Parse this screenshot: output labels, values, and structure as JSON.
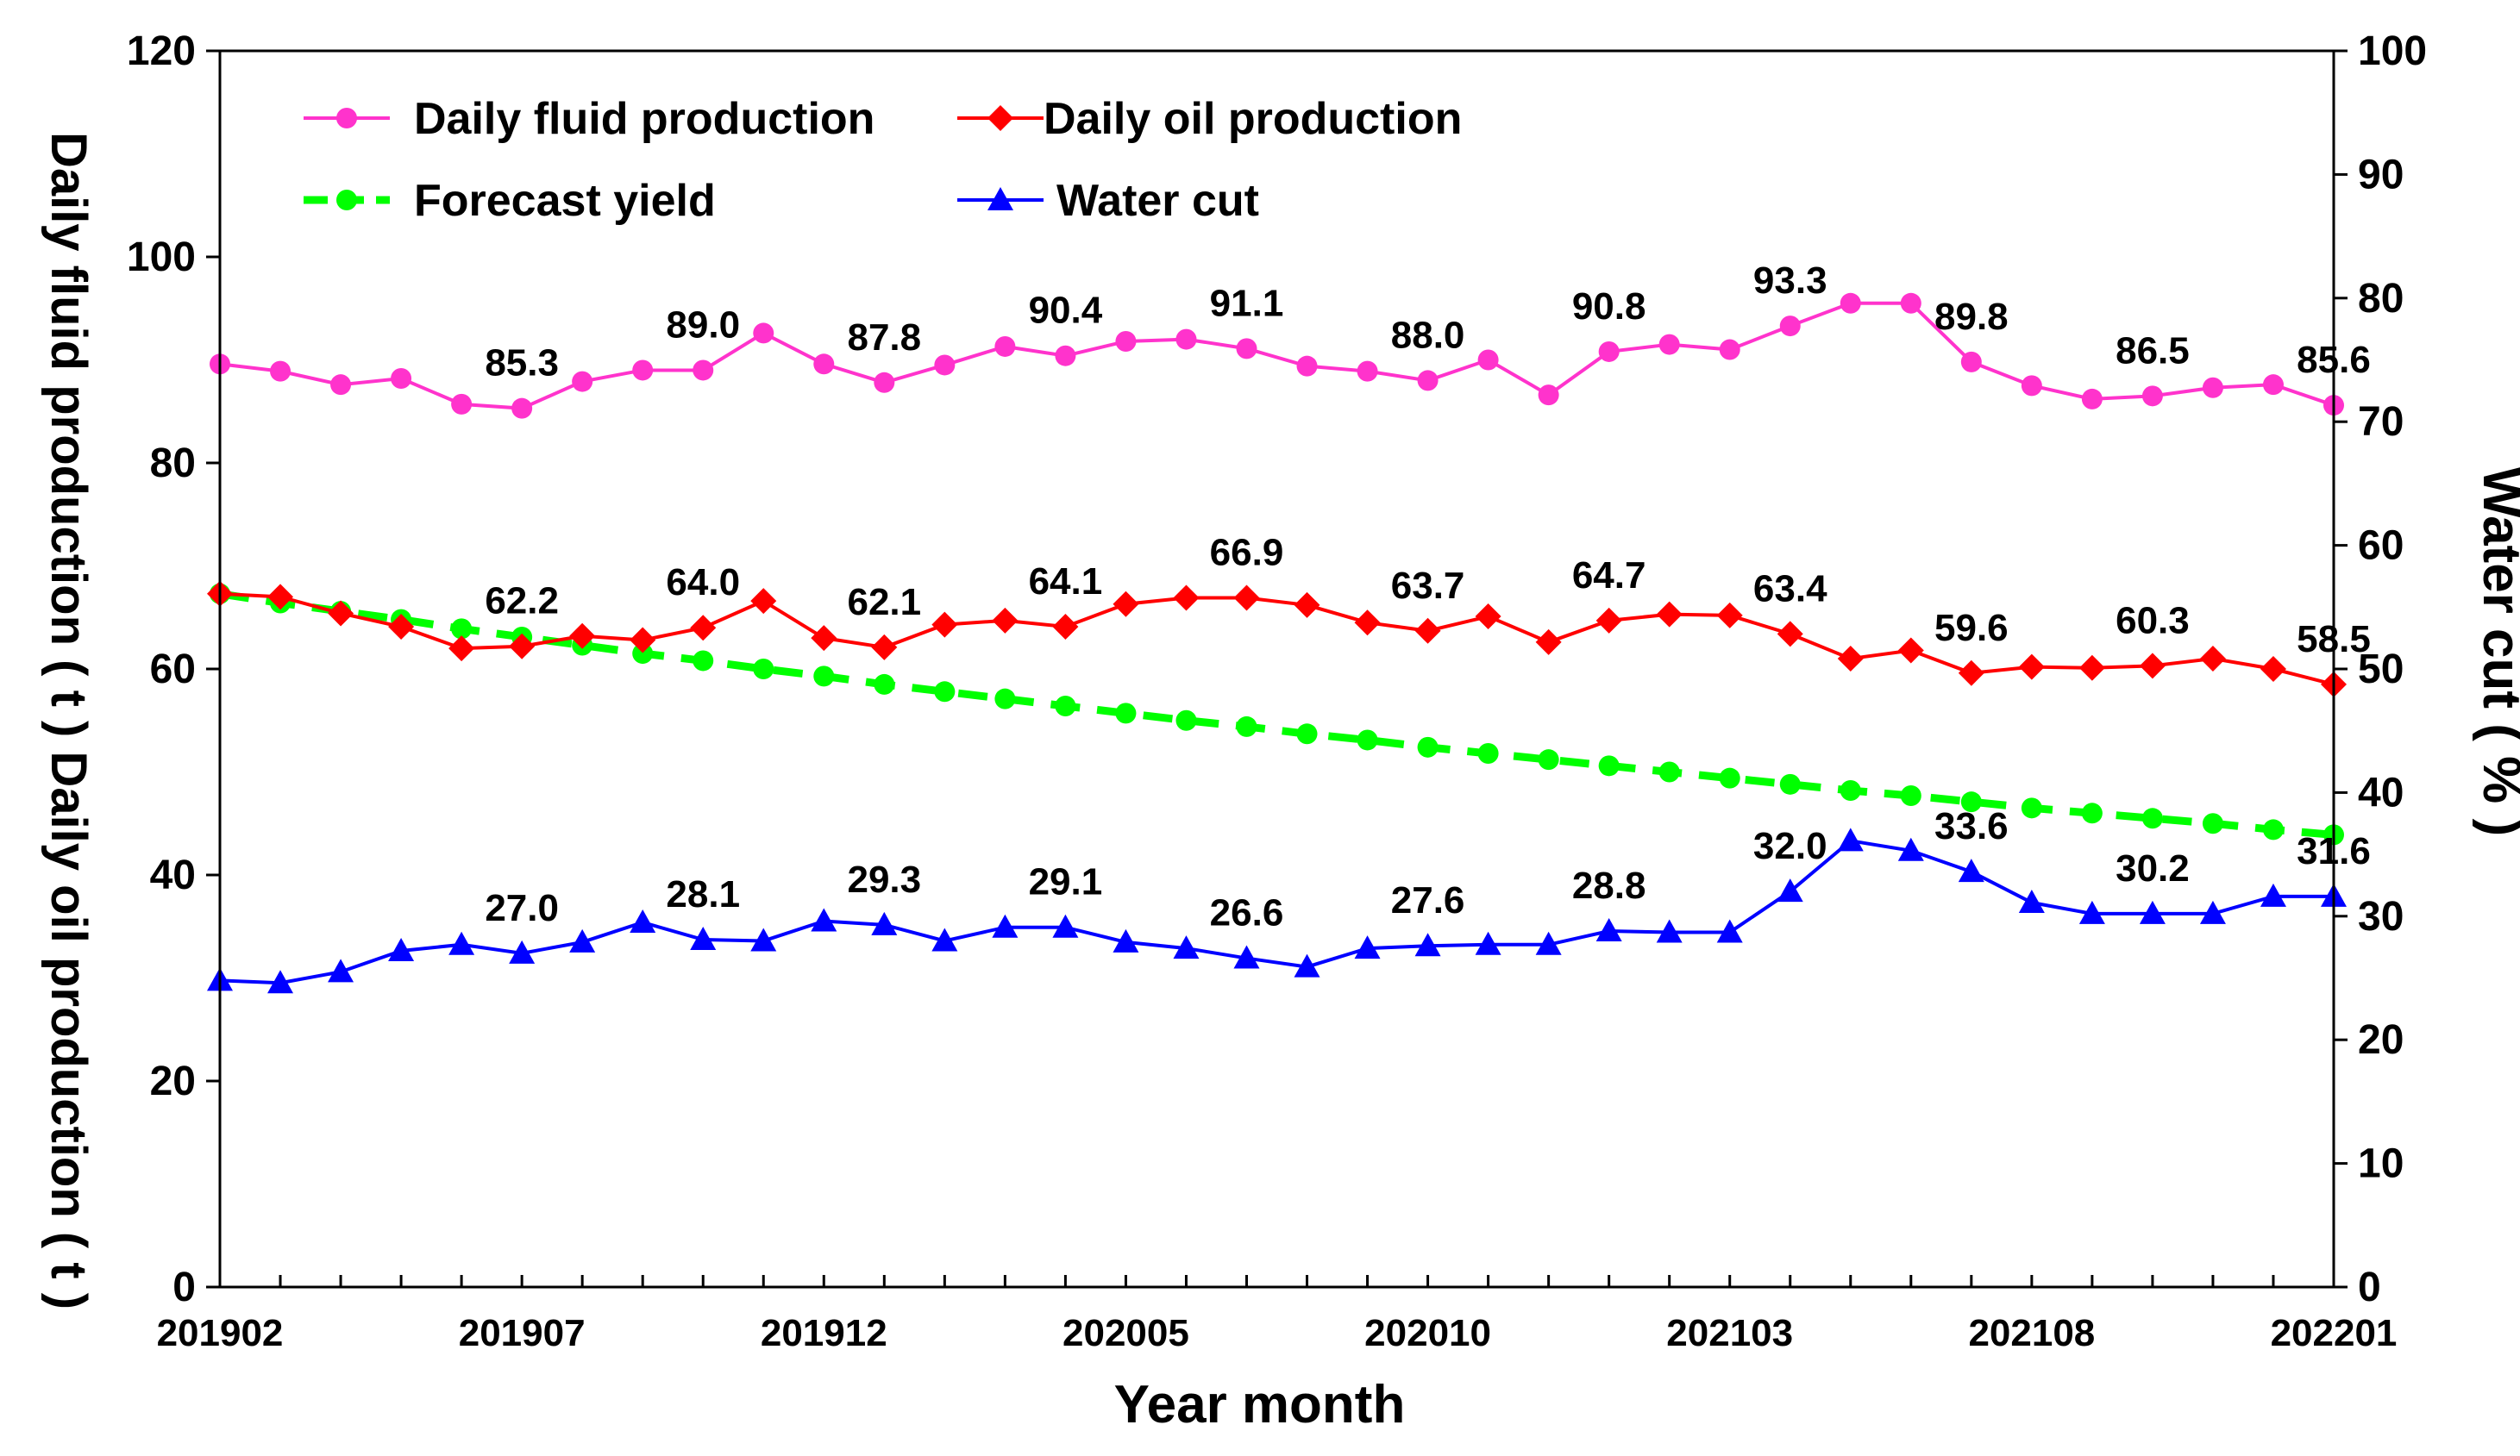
{
  "chart_data": {
    "type": "line",
    "xlabel": "Year month",
    "ylabel_left": "Daily fluid production ( t ) Daily oil production ( t )",
    "ylabel_right": "Water cut ( % )",
    "ylim_left": [
      0,
      120
    ],
    "ylim_right": [
      0,
      100
    ],
    "yticks_left": [
      "0",
      "20",
      "40",
      "60",
      "80",
      "100",
      "120"
    ],
    "yticks_right": [
      "0",
      "10",
      "20",
      "30",
      "40",
      "50",
      "60",
      "70",
      "80",
      "90",
      "100"
    ],
    "xtick_labels": [
      "201902",
      "201907",
      "201912",
      "202005",
      "202010",
      "202103",
      "202108",
      "202201"
    ],
    "x": [
      "201902",
      "201903",
      "201904",
      "201905",
      "201906",
      "201907",
      "201908",
      "201909",
      "201910",
      "201911",
      "201912",
      "202001",
      "202002",
      "202003",
      "202004",
      "202005",
      "202006",
      "202007",
      "202008",
      "202009",
      "202010",
      "202011",
      "202012",
      "202101",
      "202102",
      "202103",
      "202104",
      "202105",
      "202106",
      "202107",
      "202108",
      "202109",
      "202110",
      "202111",
      "202112",
      "202201"
    ],
    "legend_position": "top-left",
    "grid": false,
    "series": [
      {
        "name": "Daily fluid production",
        "axis": "left",
        "color": "#ff33cc",
        "marker": "circle",
        "style": "solid",
        "values": [
          89.6,
          88.9,
          87.6,
          88.2,
          85.7,
          85.3,
          87.9,
          89.0,
          89.0,
          92.6,
          89.6,
          87.8,
          89.5,
          91.3,
          90.4,
          91.8,
          92.0,
          91.1,
          89.4,
          88.9,
          88.0,
          90.0,
          86.6,
          90.8,
          91.5,
          91.0,
          93.3,
          95.5,
          95.5,
          89.8,
          87.5,
          86.2,
          86.5,
          87.3,
          87.6,
          85.6
        ],
        "labels": [
          [
            5,
            "85.3"
          ],
          [
            8,
            "89.0"
          ],
          [
            11,
            "87.8"
          ],
          [
            14,
            "90.4"
          ],
          [
            17,
            "91.1"
          ],
          [
            20,
            "88.0"
          ],
          [
            23,
            "90.8"
          ],
          [
            26,
            "93.3"
          ],
          [
            29,
            "89.8"
          ],
          [
            32,
            "86.5"
          ],
          [
            35,
            "85.6"
          ]
        ]
      },
      {
        "name": "Daily oil production",
        "axis": "left",
        "color": "#ff0000",
        "marker": "diamond",
        "style": "solid",
        "values": [
          67.3,
          67.0,
          65.4,
          64.1,
          62.0,
          62.2,
          63.2,
          62.8,
          64.0,
          66.6,
          63.0,
          62.1,
          64.3,
          64.7,
          64.1,
          66.3,
          66.9,
          66.9,
          66.2,
          64.5,
          63.7,
          65.1,
          62.6,
          64.7,
          65.3,
          65.2,
          63.4,
          61.0,
          61.8,
          59.6,
          60.2,
          60.1,
          60.3,
          61.0,
          60.0,
          58.5
        ],
        "labels": [
          [
            5,
            "62.2"
          ],
          [
            8,
            "64.0"
          ],
          [
            11,
            "62.1"
          ],
          [
            14,
            "64.1"
          ],
          [
            17,
            "66.9"
          ],
          [
            20,
            "63.7"
          ],
          [
            23,
            "64.7"
          ],
          [
            26,
            "63.4"
          ],
          [
            29,
            "59.6"
          ],
          [
            32,
            "60.3"
          ],
          [
            35,
            "58.5"
          ]
        ]
      },
      {
        "name": "Forecast yield",
        "axis": "left",
        "color": "#00ff00",
        "marker": "circle",
        "style": "dashed",
        "values": [
          67.3,
          66.4,
          65.6,
          64.8,
          63.9,
          63.1,
          62.3,
          61.5,
          60.8,
          60.0,
          59.3,
          58.5,
          57.8,
          57.1,
          56.4,
          55.7,
          55.0,
          54.4,
          53.7,
          53.1,
          52.4,
          51.8,
          51.2,
          50.6,
          50.0,
          49.4,
          48.8,
          48.2,
          47.7,
          47.1,
          46.5,
          46.0,
          45.5,
          45.0,
          44.4,
          43.9
        ]
      },
      {
        "name": "Water cut",
        "axis": "right",
        "color": "#0000ff",
        "marker": "triangle",
        "style": "solid",
        "values": [
          24.8,
          24.6,
          25.5,
          27.2,
          27.7,
          27.0,
          27.9,
          29.5,
          28.1,
          28.0,
          29.6,
          29.3,
          28.0,
          29.1,
          29.1,
          27.9,
          27.4,
          26.6,
          25.9,
          27.4,
          27.6,
          27.7,
          27.7,
          28.8,
          28.7,
          28.7,
          32.0,
          36.1,
          35.3,
          33.6,
          31.1,
          30.2,
          30.2,
          30.2,
          31.6,
          31.6
        ],
        "labels": [
          [
            5,
            "27.0"
          ],
          [
            8,
            "28.1"
          ],
          [
            11,
            "29.3"
          ],
          [
            14,
            "29.1"
          ],
          [
            17,
            "26.6"
          ],
          [
            20,
            "27.6"
          ],
          [
            23,
            "28.8"
          ],
          [
            26,
            "32.0"
          ],
          [
            29,
            "33.6"
          ],
          [
            32,
            "30.2"
          ],
          [
            35,
            "31.6"
          ]
        ]
      }
    ]
  }
}
